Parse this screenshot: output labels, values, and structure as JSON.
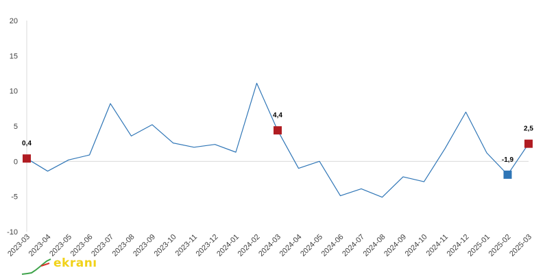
{
  "chart_data": {
    "type": "line",
    "title": "",
    "xlabel": "",
    "ylabel": "",
    "ylim": [
      -10,
      20
    ],
    "yticks": [
      -10,
      -5,
      0,
      5,
      10,
      15,
      20
    ],
    "grid": false,
    "legend": "none",
    "categories": [
      "2023-03",
      "2023-04",
      "2023-05",
      "2023-06",
      "2023-07",
      "2023-08",
      "2023-09",
      "2023-10",
      "2023-11",
      "2023-12",
      "2024-01",
      "2024-02",
      "2024-03",
      "2024-04",
      "2024-05",
      "2024-06",
      "2024-07",
      "2024-08",
      "2024-09",
      "2024-10",
      "2024-11",
      "2024-12",
      "2025-01",
      "2025-02",
      "2025-03"
    ],
    "series": [
      {
        "values": [
          0.4,
          -1.4,
          0.2,
          0.9,
          8.2,
          3.6,
          5.2,
          2.6,
          2.0,
          2.4,
          1.3,
          11.1,
          4.4,
          -1.0,
          0.0,
          -4.9,
          -3.9,
          -5.1,
          -2.2,
          -2.9,
          1.8,
          7.0,
          1.2,
          -1.9,
          2.5
        ]
      }
    ],
    "highlights": [
      {
        "category": "2023-03",
        "value": 0.4,
        "label": "0,4",
        "color": "#b01c22"
      },
      {
        "category": "2024-03",
        "value": 4.4,
        "label": "4,4",
        "color": "#b01c22"
      },
      {
        "category": "2025-02",
        "value": -1.9,
        "label": "-1,9",
        "color": "#2e75b6"
      },
      {
        "category": "2025-03",
        "value": 2.5,
        "label": "2,5",
        "color": "#b01c22"
      }
    ],
    "colors": {
      "line": "#2e75b6",
      "zero_line": "#d9d9d9",
      "axis": "#d9d9d9"
    }
  },
  "watermark": {
    "text": "ekranı",
    "color": "#f1d21a"
  }
}
